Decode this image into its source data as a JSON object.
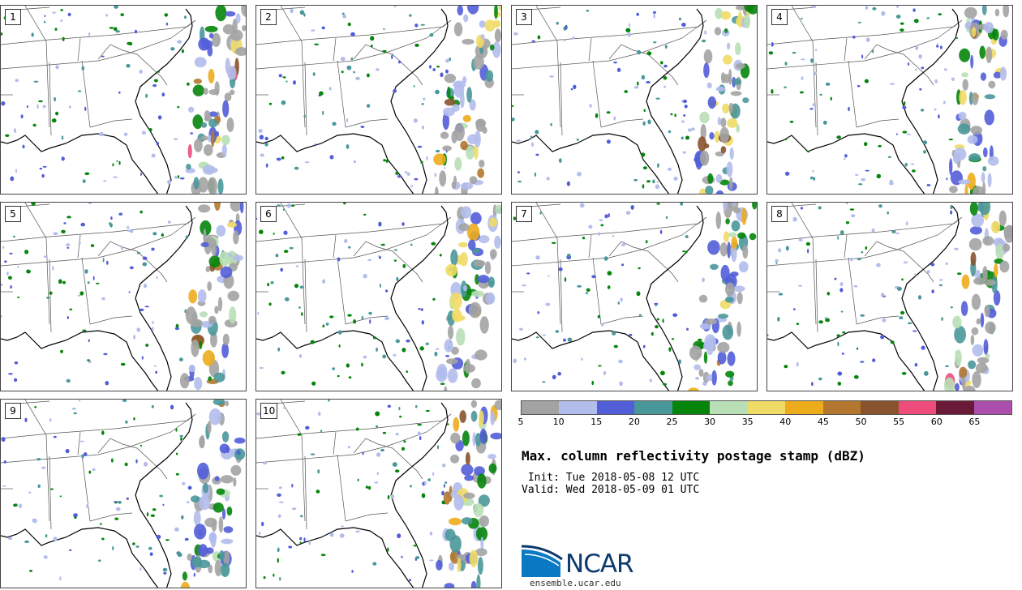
{
  "panels": [
    {
      "label": "1"
    },
    {
      "label": "2"
    },
    {
      "label": "3"
    },
    {
      "label": "4"
    },
    {
      "label": "5"
    },
    {
      "label": "6"
    },
    {
      "label": "7"
    },
    {
      "label": "8"
    },
    {
      "label": "9"
    },
    {
      "label": "10"
    }
  ],
  "colorbar": {
    "colors": [
      "#a3a3a3",
      "#b3bdec",
      "#525ed8",
      "#4a979a",
      "#05850c",
      "#b8dfb6",
      "#efdb66",
      "#ecac1c",
      "#b3772f",
      "#88532d",
      "#ee4d7b",
      "#6a1a36",
      "#ac4eab"
    ],
    "ticks": [
      "5",
      "10",
      "15",
      "20",
      "25",
      "30",
      "35",
      "40",
      "45",
      "50",
      "55",
      "60",
      "65"
    ]
  },
  "title": "Max. column reflectivity postage stamp (dBZ)",
  "init": " Init: Tue 2018-05-08 12 UTC",
  "valid": "Valid: Wed 2018-05-09 01 UTC",
  "logo": {
    "name": "NCAR",
    "site": "ensemble.ucar.edu"
  }
}
